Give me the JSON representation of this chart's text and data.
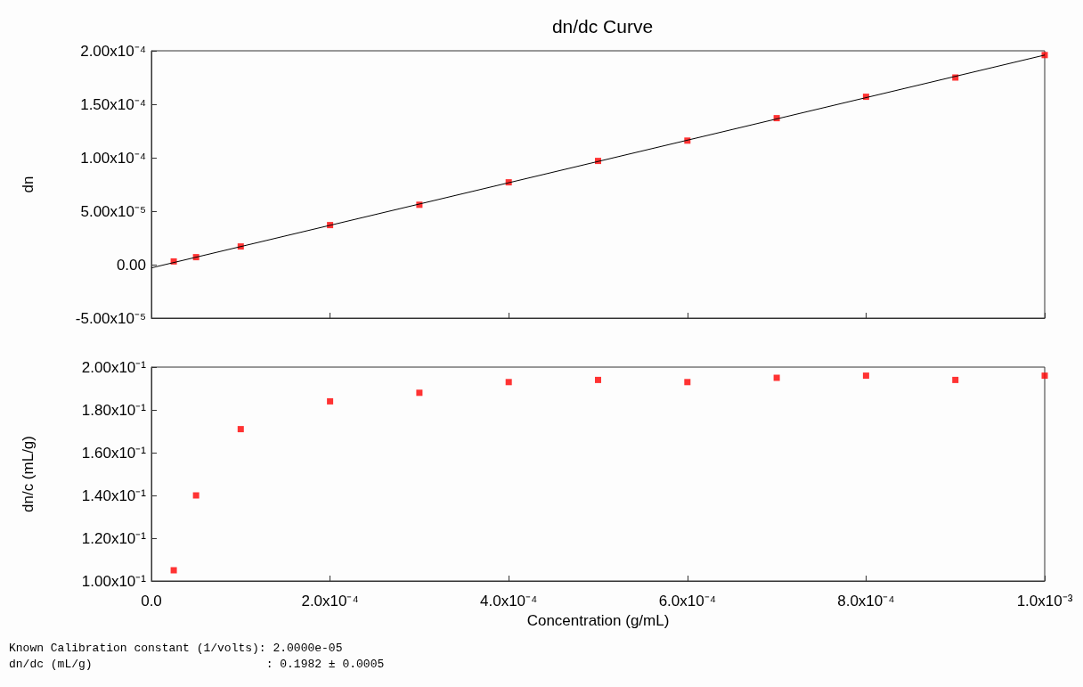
{
  "chart_data": [
    {
      "type": "scatter",
      "title": "dn/dc Curve",
      "ylabel": "dn",
      "tick_labels": "y",
      "x": [
        2.5e-05,
        5e-05,
        0.0001,
        0.0002,
        0.0003,
        0.0004,
        0.0005,
        0.0006,
        0.0007,
        0.0008,
        0.0009,
        0.001
      ],
      "series": [
        {
          "color": "#ff0000",
          "marker": "square",
          "values": [
            3e-06,
            7e-06,
            1.7e-05,
            3.7e-05,
            5.6e-05,
            7.7e-05,
            9.7e-05,
            0.000116,
            0.000137,
            0.000157,
            0.000175,
            0.000196
          ]
        },
        {
          "type": "line",
          "color": "#000000",
          "marker": "none",
          "line_style": "solid",
          "x": [
            0,
            0.001
          ],
          "values": [
            -3e-06,
            0.000196
          ]
        }
      ],
      "xlim": [
        0,
        0.001
      ],
      "xticks": [
        {
          "value": 0,
          "label": null
        },
        {
          "value": 0.0002,
          "label": null
        },
        {
          "value": 0.0004,
          "label": null
        },
        {
          "value": 0.0006,
          "label": null
        },
        {
          "value": 0.0008,
          "label": null
        },
        {
          "value": 0.001,
          "label": null
        }
      ],
      "ylim": [
        -5e-05,
        0.0002
      ],
      "yticks": [
        {
          "value": -5e-05,
          "label": "-5.00x10⁻⁵"
        },
        {
          "value": 0,
          "label": "0.00"
        },
        {
          "value": 5e-05,
          "label": "5.00x10⁻⁵"
        },
        {
          "value": 0.0001,
          "label": "1.00x10⁻⁴"
        },
        {
          "value": 0.00015,
          "label": "1.50x10⁻⁴"
        },
        {
          "value": 0.0002,
          "label": "2.00x10⁻⁴"
        }
      ]
    },
    {
      "type": "scatter",
      "xlabel": "Concentration (g/mL)",
      "ylabel": "dn/c (mL/g)",
      "x": [
        2.5e-05,
        5e-05,
        0.0001,
        0.0002,
        0.0003,
        0.0004,
        0.0005,
        0.0006,
        0.0007,
        0.0008,
        0.0009,
        0.001
      ],
      "series": [
        {
          "color": "#ff0000",
          "marker": "square",
          "values": [
            0.105,
            0.14,
            0.171,
            0.184,
            0.188,
            0.193,
            0.194,
            0.193,
            0.195,
            0.196,
            0.194,
            0.196
          ]
        }
      ],
      "xlim": [
        0,
        0.001
      ],
      "xticks": [
        {
          "value": 0,
          "label": "0.0"
        },
        {
          "value": 0.0002,
          "label": "2.0x10⁻⁴"
        },
        {
          "value": 0.0004,
          "label": "4.0x10⁻⁴"
        },
        {
          "value": 0.0006,
          "label": "6.0x10⁻⁴"
        },
        {
          "value": 0.0008,
          "label": "8.0x10⁻⁴"
        },
        {
          "value": 0.001,
          "label": "1.0x10⁻³"
        }
      ],
      "ylim": [
        0.1,
        0.2
      ],
      "yticks": [
        {
          "value": 0.1,
          "label": "1.00x10⁻¹"
        },
        {
          "value": 0.12,
          "label": "1.20x10⁻¹"
        },
        {
          "value": 0.14,
          "label": "1.40x10⁻¹"
        },
        {
          "value": 0.16,
          "label": "1.60x10⁻¹"
        },
        {
          "value": 0.18,
          "label": "1.80x10⁻¹"
        },
        {
          "value": 0.2,
          "label": "2.00x10⁻¹"
        }
      ],
      "annotations": [
        "Known Calibration constant (1/volts): 2.0000e-05",
        "dn/dc (mL/g)                         : 0.1982 ± 0.0005"
      ]
    }
  ]
}
